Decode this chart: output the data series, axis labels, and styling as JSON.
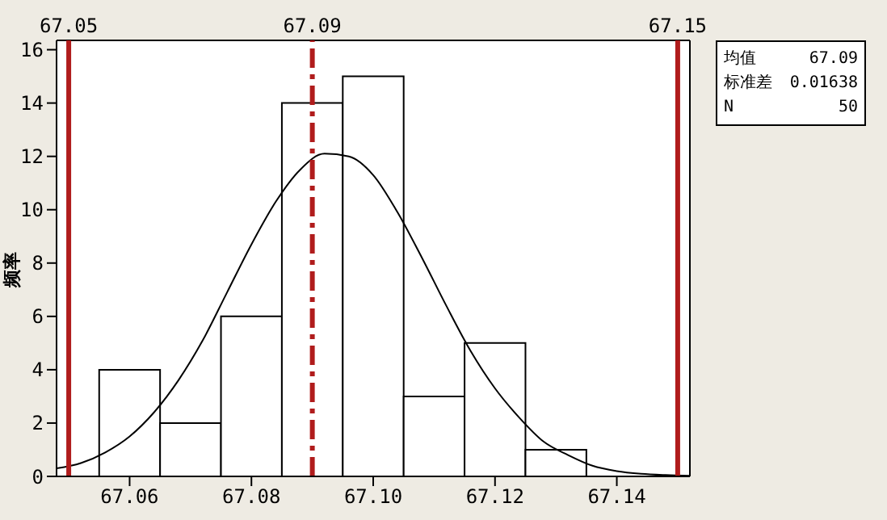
{
  "chart_data": {
    "type": "histogram",
    "ylabel": "频率",
    "bins": [
      67.055,
      67.065,
      67.075,
      67.085,
      67.095,
      67.105,
      67.115,
      67.125,
      67.135
    ],
    "values": [
      4,
      2,
      6,
      14,
      15,
      3,
      5,
      1
    ],
    "color": "#ffffff",
    "series": [
      {
        "type": "line",
        "color": "#000000",
        "x": [
          67.048,
          67.052,
          67.056,
          67.06,
          67.064,
          67.068,
          67.072,
          67.076,
          67.08,
          67.084,
          67.088,
          67.092,
          67.096,
          67.1,
          67.104,
          67.108,
          67.112,
          67.116,
          67.12,
          67.124,
          67.128,
          67.132,
          67.136,
          67.14,
          67.144,
          67.148,
          67.152
        ],
        "values": [
          0.3,
          0.5,
          0.9,
          1.5,
          2.4,
          3.6,
          5.1,
          6.9,
          8.7,
          10.3,
          11.5,
          12.1,
          12,
          11.3,
          9.9,
          8.2,
          6.4,
          4.7,
          3.3,
          2.2,
          1.3,
          0.8,
          0.4,
          0.2,
          0.1,
          0.05,
          0.02
        ]
      }
    ],
    "xlim": [
      67.048,
      67.152
    ],
    "xticks": [
      67.06,
      67.08,
      {
        "value": 67.1,
        "label": "67.10"
      },
      67.12,
      67.14
    ],
    "ylim": [
      0,
      16.35
    ],
    "yticks": [
      0,
      2,
      4,
      6,
      8,
      10,
      12,
      14,
      16
    ],
    "ref_lines": [
      {
        "axis": "x",
        "value": 67.05,
        "label": "67.05",
        "color": "#b01c1c",
        "line_style": "solid"
      },
      {
        "axis": "x",
        "value": 67.09,
        "label": "67.09",
        "color": "#b01c1c",
        "line_style": "dashed"
      },
      {
        "axis": "x",
        "value": 67.15,
        "label": "67.15",
        "color": "#b01c1c",
        "line_style": "solid"
      }
    ],
    "annotations": [
      "均值 67.09",
      "标准差 0.01638",
      "N 50"
    ],
    "marker": "none",
    "legend": false
  }
}
